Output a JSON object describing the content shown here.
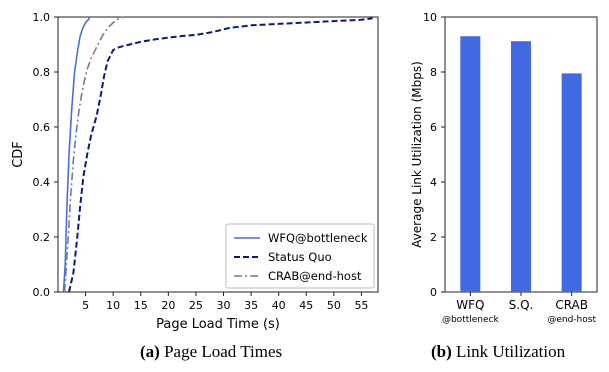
{
  "chart_data": [
    {
      "type": "line",
      "subplot_label": "(a)",
      "caption": "Page Load Times",
      "xlabel": "Page Load Time (s)",
      "ylabel": "CDF",
      "xlim": [
        0,
        58
      ],
      "ylim": [
        0,
        1.0
      ],
      "xticks": [
        5,
        10,
        15,
        20,
        25,
        30,
        35,
        40,
        45,
        50,
        55
      ],
      "yticks": [
        0.0,
        0.2,
        0.4,
        0.6,
        0.8,
        1.0
      ],
      "ytick_labels": [
        "0.0",
        "0.2",
        "0.4",
        "0.6",
        "0.8",
        "1.0"
      ],
      "grid": false,
      "legend_position": "bottom-right",
      "series": [
        {
          "name": "WFQ@bottleneck",
          "style": "solid",
          "color": "#4a6fd8",
          "x": [
            1.0,
            1.3,
            1.6,
            2.0,
            2.5,
            3.0,
            3.5,
            4.0,
            4.5,
            5.0,
            5.5,
            5.8
          ],
          "y": [
            0.0,
            0.1,
            0.3,
            0.5,
            0.67,
            0.8,
            0.87,
            0.93,
            0.96,
            0.98,
            0.99,
            1.0
          ]
        },
        {
          "name": "Status Quo",
          "style": "dashed",
          "color": "#0d1a7a",
          "x": [
            2.0,
            2.8,
            3.5,
            4.0,
            4.6,
            5.3,
            6.0,
            7.0,
            7.8,
            8.3,
            9.0,
            10.0,
            11.0,
            12.0,
            13.0,
            15.0,
            18.0,
            22.0,
            25.0,
            28.0,
            31.0,
            35.0,
            40.0,
            45.0,
            50.0,
            55.0,
            57.0
          ],
          "y": [
            0.0,
            0.07,
            0.2,
            0.31,
            0.42,
            0.5,
            0.57,
            0.64,
            0.72,
            0.78,
            0.84,
            0.88,
            0.89,
            0.895,
            0.9,
            0.91,
            0.92,
            0.93,
            0.935,
            0.945,
            0.96,
            0.97,
            0.975,
            0.98,
            0.985,
            0.99,
            0.995
          ]
        },
        {
          "name": "CRAB@end-host",
          "style": "dashdot",
          "color": "#6e7f93",
          "x": [
            1.2,
            1.8,
            2.3,
            2.8,
            3.3,
            3.8,
            4.3,
            4.8,
            5.3,
            6.0,
            7.0,
            8.0,
            9.0,
            10.0,
            11.0,
            12.0
          ],
          "y": [
            0.0,
            0.18,
            0.35,
            0.48,
            0.58,
            0.66,
            0.72,
            0.77,
            0.81,
            0.85,
            0.89,
            0.93,
            0.96,
            0.98,
            0.995,
            1.0
          ]
        }
      ]
    },
    {
      "type": "bar",
      "subplot_label": "(b)",
      "caption": "Link Utilization",
      "ylabel": "Average Link Utilization (Mbps)",
      "ylim": [
        0,
        10
      ],
      "yticks": [
        0,
        2,
        4,
        6,
        8,
        10
      ],
      "grid": false,
      "bar_color": "#4169e1",
      "categories": [
        {
          "name": "WFQ",
          "sub": "@bottleneck"
        },
        {
          "name": "S.Q.",
          "sub": ""
        },
        {
          "name": "CRAB",
          "sub": "@end-host"
        }
      ],
      "values": [
        9.3,
        9.12,
        7.95
      ]
    }
  ]
}
